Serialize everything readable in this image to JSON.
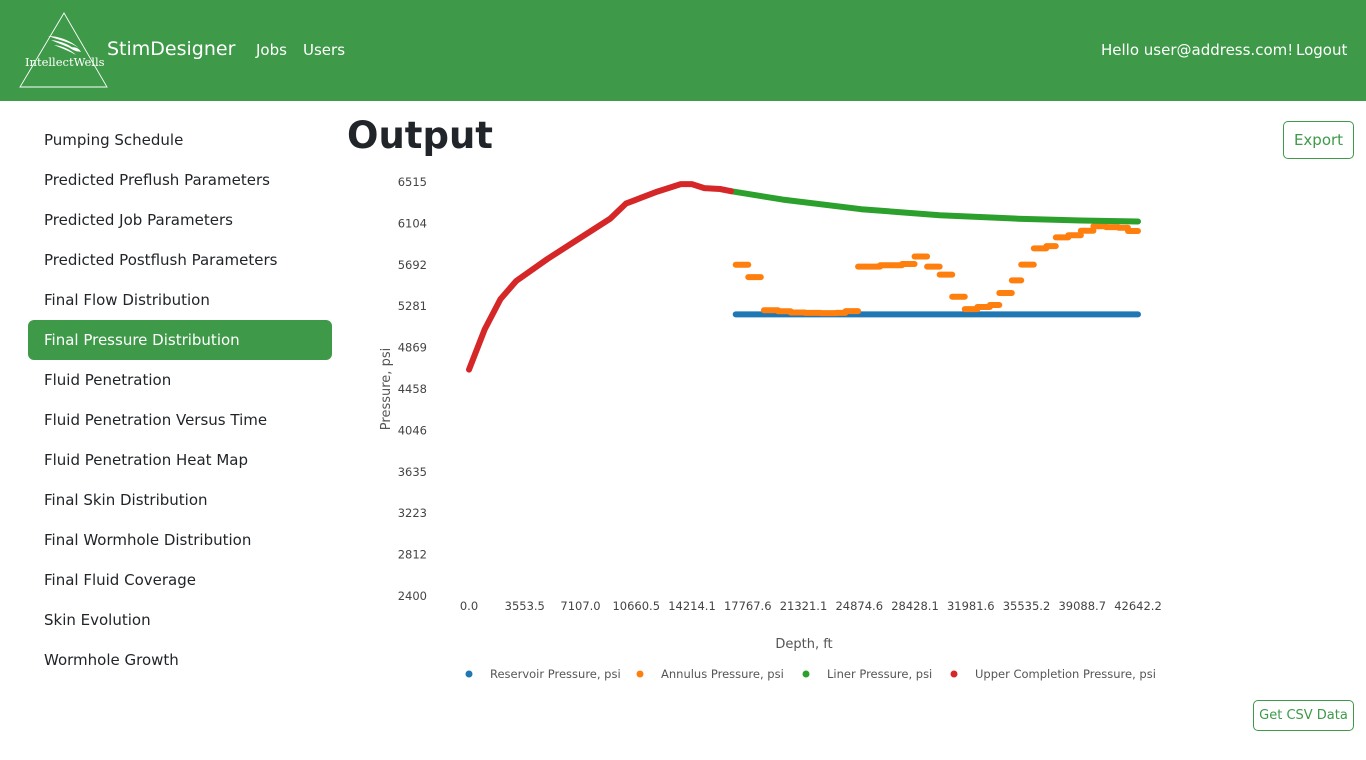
{
  "header": {
    "logo_text": "IntellectWells",
    "app_name": "StimDesigner",
    "nav": [
      "Jobs",
      "Users"
    ],
    "greeting": "Hello user@address.com!",
    "logout": "Logout",
    "bg_color": "#3e9a49"
  },
  "sidebar": {
    "items": [
      {
        "label": "Pumping Schedule"
      },
      {
        "label": "Predicted Preflush Parameters"
      },
      {
        "label": "Predicted Job Parameters"
      },
      {
        "label": "Predicted Postflush Parameters"
      },
      {
        "label": "Final Flow Distribution"
      },
      {
        "label": "Final Pressure Distribution",
        "active": true
      },
      {
        "label": "Fluid Penetration"
      },
      {
        "label": "Fluid Penetration Versus Time"
      },
      {
        "label": "Fluid Penetration Heat Map"
      },
      {
        "label": "Final Skin Distribution"
      },
      {
        "label": "Final Wormhole Distribution"
      },
      {
        "label": "Final Fluid Coverage"
      },
      {
        "label": "Skin Evolution"
      },
      {
        "label": "Wormhole Growth"
      }
    ]
  },
  "main": {
    "title": "Output",
    "export_label": "Export",
    "csv_label": "Get CSV Data"
  },
  "chart_data": {
    "type": "scatter",
    "title": "",
    "xlabel": "Depth, ft",
    "ylabel": "Pressure, psi",
    "xlim": [
      0,
      42642.2
    ],
    "ylim": [
      2400,
      6515
    ],
    "x_ticks": [
      "0.0",
      "3553.5",
      "7107.0",
      "10660.5",
      "14214.1",
      "17767.6",
      "21321.1",
      "24874.6",
      "28428.1",
      "31981.6",
      "35535.2",
      "39088.7",
      "42642.2"
    ],
    "y_ticks": [
      "6515",
      "6104",
      "5692",
      "5281",
      "4869",
      "4458",
      "4046",
      "3635",
      "3223",
      "2812",
      "2400"
    ],
    "grid": false,
    "legend_position": "bottom",
    "series": [
      {
        "name": "Reservoir Pressure, psi",
        "color": "#1f77b4",
        "mode": "line",
        "points": [
          [
            17000,
            5199
          ],
          [
            42642,
            5199
          ]
        ]
      },
      {
        "name": "Annulus Pressure, psi",
        "color": "#ff7f0e",
        "mode": "segments",
        "segments": [
          [
            [
              17000,
              5692
            ],
            [
              17800,
              5692
            ]
          ],
          [
            [
              17800,
              5570
            ],
            [
              18600,
              5570
            ]
          ],
          [
            [
              18800,
              5240
            ],
            [
              19700,
              5240
            ]
          ],
          [
            [
              19700,
              5230
            ],
            [
              20500,
              5230
            ]
          ],
          [
            [
              20500,
              5218
            ],
            [
              21400,
              5218
            ]
          ],
          [
            [
              21400,
              5214
            ],
            [
              22400,
              5214
            ]
          ],
          [
            [
              22400,
              5212
            ],
            [
              23400,
              5212
            ]
          ],
          [
            [
              23400,
              5214
            ],
            [
              24000,
              5214
            ]
          ],
          [
            [
              24000,
              5232
            ],
            [
              24800,
              5232
            ]
          ],
          [
            [
              24800,
              5674
            ],
            [
              26200,
              5674
            ]
          ],
          [
            [
              26200,
              5688
            ],
            [
              27600,
              5688
            ]
          ],
          [
            [
              27600,
              5700
            ],
            [
              28400,
              5700
            ]
          ],
          [
            [
              28400,
              5775
            ],
            [
              29200,
              5775
            ]
          ],
          [
            [
              29200,
              5674
            ],
            [
              30000,
              5674
            ]
          ],
          [
            [
              30000,
              5594
            ],
            [
              30800,
              5594
            ]
          ],
          [
            [
              30800,
              5374
            ],
            [
              31600,
              5374
            ]
          ],
          [
            [
              31600,
              5252
            ],
            [
              32400,
              5252
            ]
          ],
          [
            [
              32400,
              5272
            ],
            [
              33200,
              5272
            ]
          ],
          [
            [
              33200,
              5292
            ],
            [
              33800,
              5292
            ]
          ],
          [
            [
              33800,
              5412
            ],
            [
              34600,
              5412
            ]
          ],
          [
            [
              34600,
              5537
            ],
            [
              35200,
              5537
            ]
          ],
          [
            [
              35200,
              5694
            ],
            [
              36000,
              5694
            ]
          ],
          [
            [
              36000,
              5855
            ],
            [
              36800,
              5855
            ]
          ],
          [
            [
              36800,
              5878
            ],
            [
              37400,
              5878
            ]
          ],
          [
            [
              37400,
              5964
            ],
            [
              38200,
              5964
            ]
          ],
          [
            [
              38200,
              5986
            ],
            [
              39000,
              5986
            ]
          ],
          [
            [
              39000,
              6030
            ],
            [
              39800,
              6030
            ]
          ],
          [
            [
              39800,
              6075
            ],
            [
              40600,
              6075
            ]
          ],
          [
            [
              40600,
              6067
            ],
            [
              41400,
              6067
            ]
          ],
          [
            [
              41400,
              6060
            ],
            [
              42000,
              6060
            ]
          ],
          [
            [
              42000,
              6028
            ],
            [
              42642,
              6028
            ]
          ]
        ]
      },
      {
        "name": "Liner Pressure, psi",
        "color": "#2ca02c",
        "mode": "line",
        "points": [
          [
            16700,
            6424
          ],
          [
            20000,
            6340
          ],
          [
            25000,
            6245
          ],
          [
            30000,
            6185
          ],
          [
            35000,
            6150
          ],
          [
            39000,
            6132
          ],
          [
            42642,
            6122
          ]
        ]
      },
      {
        "name": "Upper Completion Pressure, psi",
        "color": "#d62728",
        "mode": "line",
        "points": [
          [
            0,
            4650
          ],
          [
            1000,
            5050
          ],
          [
            2000,
            5350
          ],
          [
            3000,
            5530
          ],
          [
            5000,
            5750
          ],
          [
            7000,
            5950
          ],
          [
            9000,
            6150
          ],
          [
            10000,
            6300
          ],
          [
            11000,
            6360
          ],
          [
            12000,
            6420
          ],
          [
            13500,
            6494
          ],
          [
            14200,
            6494
          ],
          [
            15000,
            6454
          ],
          [
            16000,
            6445
          ],
          [
            16700,
            6424
          ]
        ]
      }
    ]
  }
}
